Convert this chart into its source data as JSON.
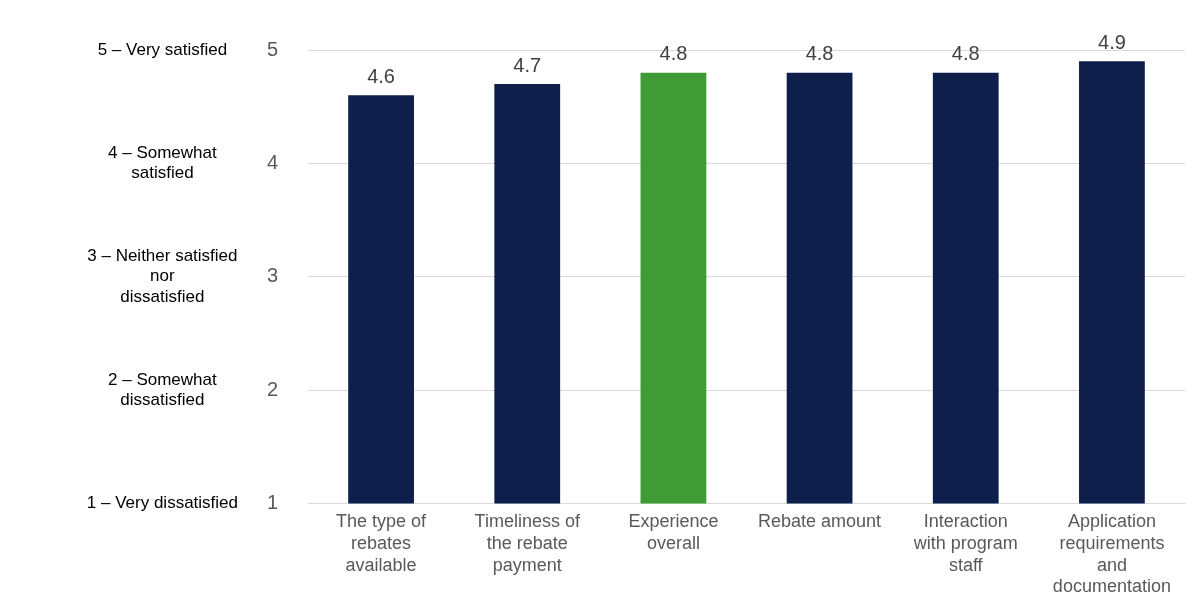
{
  "chart_data": {
    "type": "bar",
    "categories": [
      "The type of rebates available",
      "Timeliness of the rebate payment",
      "Experience overall",
      "Rebate amount",
      "Interaction with program staff",
      "Application requirements and documentation"
    ],
    "values": [
      4.6,
      4.7,
      4.8,
      4.8,
      4.8,
      4.9
    ],
    "colors": [
      "#0f1f4b",
      "#0f1f4b",
      "#3e9b35",
      "#0f1f4b",
      "#0f1f4b",
      "#0f1f4b"
    ],
    "ylim": [
      1,
      5
    ],
    "yticks": [
      1,
      2,
      3,
      4,
      5
    ],
    "y2lim": [
      1,
      5
    ],
    "y2ticks": [
      {
        "value": 1,
        "label": "1 – Very dissatisfied"
      },
      {
        "value": 2,
        "label": "2 – Somewhat\ndissatisfied"
      },
      {
        "value": 3,
        "label": "3 – Neither satisfied\nnor\ndissatisfied"
      },
      {
        "value": 4,
        "label": "4 – Somewhat\nsatisfied"
      },
      {
        "value": 5,
        "label": "5 – Very satisfied"
      }
    ],
    "grid": "y",
    "data_labels": true,
    "legend": false
  }
}
